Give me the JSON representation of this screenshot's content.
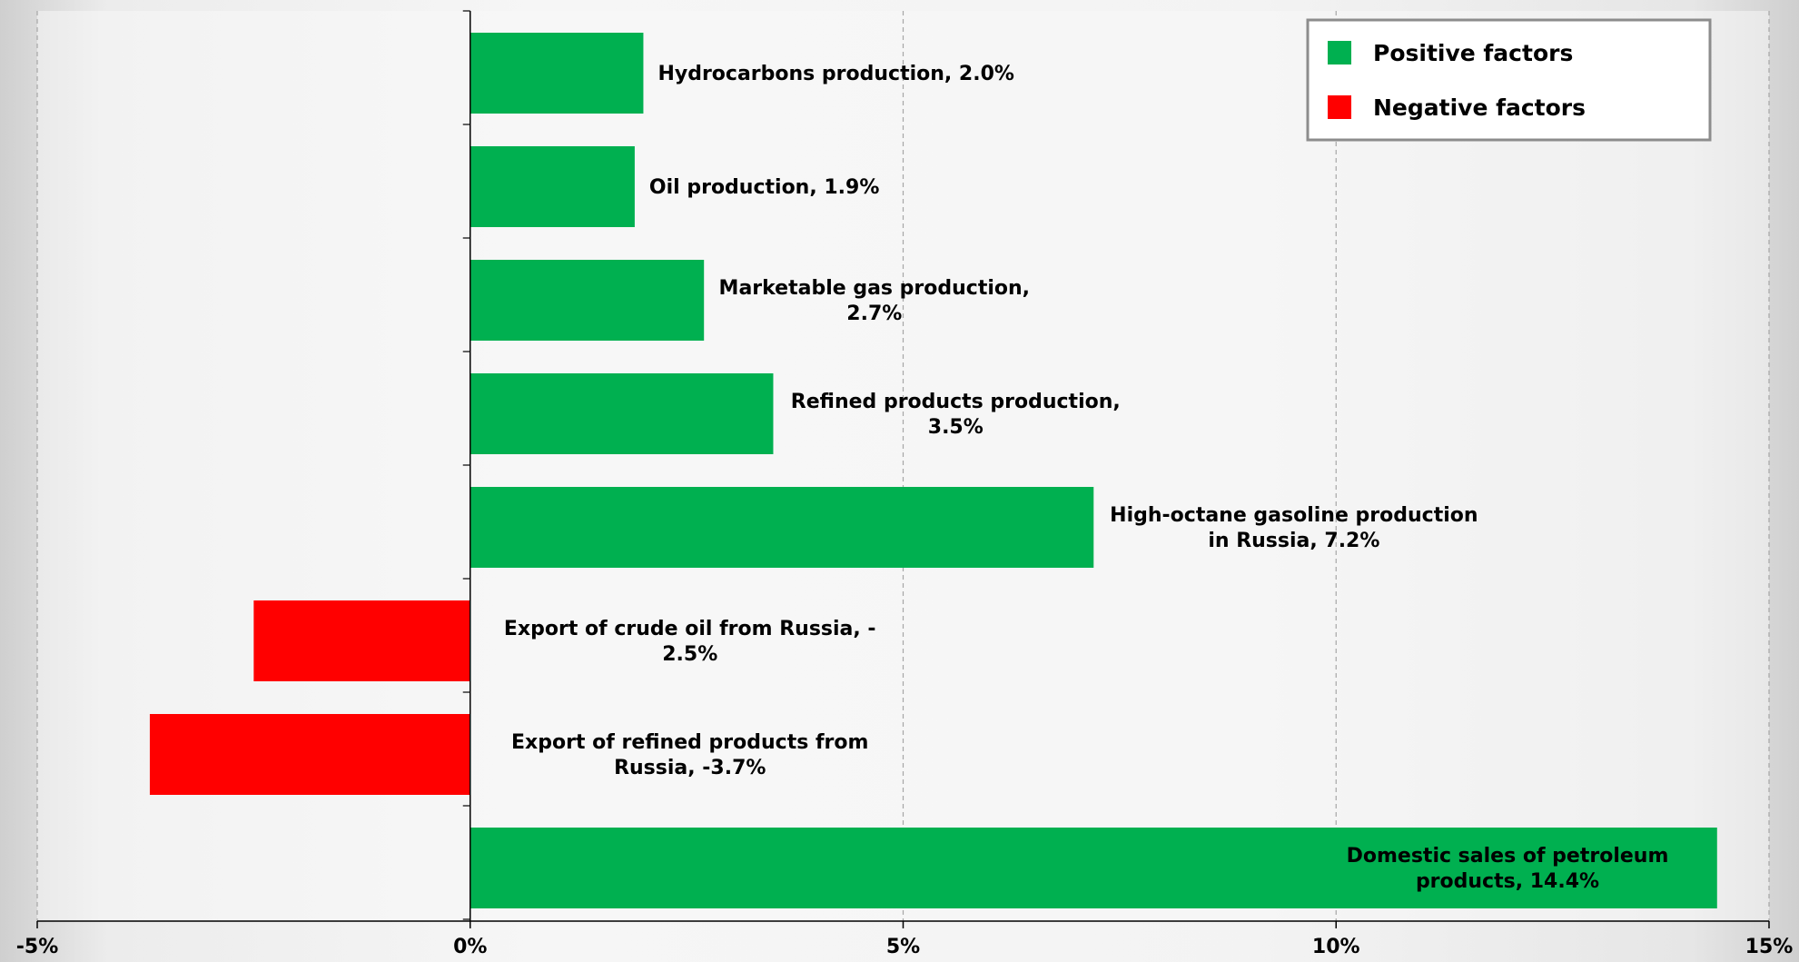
{
  "chart_data": {
    "type": "bar",
    "orientation": "horizontal",
    "title": "",
    "xlabel": "",
    "ylabel": "",
    "xlim": [
      -5,
      15
    ],
    "x_ticks": [
      -5,
      0,
      5,
      10,
      15
    ],
    "x_tick_labels": [
      "-5%",
      "0%",
      "5%",
      "10%",
      "15%"
    ],
    "grid": "vertical dashed",
    "legend_position": "top-right",
    "legend": [
      {
        "label": "Positive factors",
        "color": "#00B050"
      },
      {
        "label": "Negative factors",
        "color": "#FF0000"
      }
    ],
    "bars": [
      {
        "value": 2.0,
        "label_lines": [
          "Hydrocarbons production, 2.0%"
        ],
        "factor": "positive"
      },
      {
        "value": 1.9,
        "label_lines": [
          "Oil production, 1.9%"
        ],
        "factor": "positive"
      },
      {
        "value": 2.7,
        "label_lines": [
          "Marketable gas production,",
          "2.7%"
        ],
        "factor": "positive"
      },
      {
        "value": 3.5,
        "label_lines": [
          "Refined products production,",
          "3.5%"
        ],
        "factor": "positive"
      },
      {
        "value": 7.2,
        "label_lines": [
          "High-octane gasoline production",
          "in Russia, 7.2%"
        ],
        "factor": "positive"
      },
      {
        "value": -2.5,
        "label_lines": [
          "Export of crude oil from Russia, -",
          "2.5%"
        ],
        "factor": "negative"
      },
      {
        "value": -3.7,
        "label_lines": [
          "Export of refined products from",
          "Russia, -3.7%"
        ],
        "factor": "negative"
      },
      {
        "value": 14.4,
        "label_lines": [
          "Domestic sales of petroleum",
          "products, 14.4%"
        ],
        "factor": "positive"
      }
    ]
  }
}
